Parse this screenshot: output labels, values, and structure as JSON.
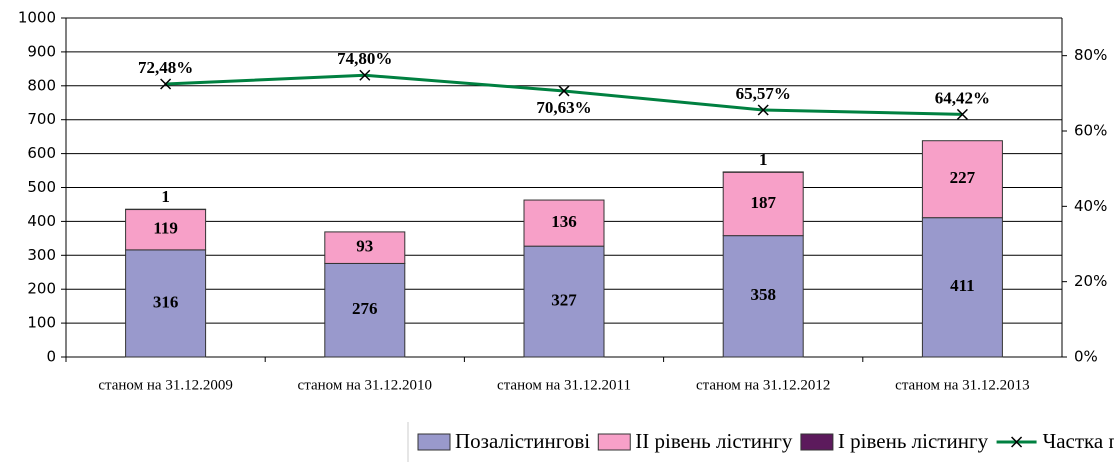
{
  "chart_data": {
    "type": "bar",
    "stacked": true,
    "categories": [
      "станом на 31.12.2009",
      "станом на 31.12.2010",
      "станом на 31.12.2011",
      "станом на 31.12.2012",
      "станом на 31.12.2013"
    ],
    "series": [
      {
        "name": "Позалістингові",
        "color": "#9999cc",
        "values": [
          316,
          276,
          327,
          358,
          411
        ]
      },
      {
        "name": "II рівень лістингу",
        "color": "#f7a0c8",
        "values": [
          119,
          93,
          136,
          187,
          227
        ]
      },
      {
        "name": "I рівень лістингу",
        "color": "#5c1a5c",
        "values": [
          1,
          null,
          null,
          1,
          null
        ]
      },
      {
        "name": "Частка позалістингових ЦП",
        "type": "line",
        "axis": "y2",
        "color": "#008040",
        "values": [
          72.48,
          74.8,
          70.63,
          65.57,
          64.42
        ],
        "value_labels": [
          "72,48%",
          "74,80%",
          "70,63%",
          "65,57%",
          "64,42%"
        ]
      }
    ],
    "ylim": [
      0,
      1000
    ],
    "yticks": [
      0,
      100,
      200,
      300,
      400,
      500,
      600,
      700,
      800,
      900,
      1000
    ],
    "y2lim": [
      0,
      90
    ],
    "y2ticks": [
      {
        "value": 0,
        "label": "0%"
      },
      {
        "value": 20,
        "label": "20%"
      },
      {
        "value": 40,
        "label": "40%"
      },
      {
        "value": 60,
        "label": "60%"
      },
      {
        "value": 80,
        "label": "80%"
      }
    ],
    "grid": true,
    "legend": "bottom"
  }
}
